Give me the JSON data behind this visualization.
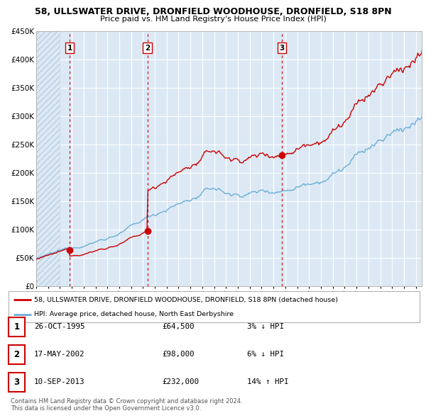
{
  "title1": "58, ULLSWATER DRIVE, DRONFIELD WOODHOUSE, DRONFIELD, S18 8PN",
  "title2": "Price paid vs. HM Land Registry's House Price Index (HPI)",
  "ylim": [
    0,
    450000
  ],
  "xlim_start": 1993.0,
  "xlim_end": 2025.5,
  "yticks": [
    0,
    50000,
    100000,
    150000,
    200000,
    250000,
    300000,
    350000,
    400000,
    450000
  ],
  "ytick_labels": [
    "£0",
    "£50K",
    "£100K",
    "£150K",
    "£200K",
    "£250K",
    "£300K",
    "£350K",
    "£400K",
    "£450K"
  ],
  "xticks": [
    1993,
    1994,
    1995,
    1996,
    1997,
    1998,
    1999,
    2000,
    2001,
    2002,
    2003,
    2004,
    2005,
    2006,
    2007,
    2008,
    2009,
    2010,
    2011,
    2012,
    2013,
    2014,
    2015,
    2016,
    2017,
    2018,
    2019,
    2020,
    2021,
    2022,
    2023,
    2024,
    2025
  ],
  "background_color": "#ffffff",
  "plot_bg_color": "#dce9f5",
  "grid_color": "#ffffff",
  "hpi_line_color": "#6baed6",
  "price_line_color": "#cc0000",
  "vline_color": "#cc0000",
  "hatch_color": "#b0c8e0",
  "sale_points": [
    {
      "year": 1995.82,
      "price": 64500,
      "label": "1"
    },
    {
      "year": 2002.38,
      "price": 98000,
      "label": "2"
    },
    {
      "year": 2013.71,
      "price": 232000,
      "label": "3"
    }
  ],
  "sale_vlines": [
    1995.82,
    2002.38,
    2013.71
  ],
  "legend_line1": "58, ULLSWATER DRIVE, DRONFIELD WOODHOUSE, DRONFIELD, S18 8PN (detached house)",
  "legend_line2": "HPI: Average price, detached house, North East Derbyshire",
  "table_rows": [
    {
      "num": "1",
      "date": "26-OCT-1995",
      "price": "£64,500",
      "hpi": "3% ↓ HPI"
    },
    {
      "num": "2",
      "date": "17-MAY-2002",
      "price": "£98,000",
      "hpi": "6% ↓ HPI"
    },
    {
      "num": "3",
      "date": "10-SEP-2013",
      "price": "£232,000",
      "hpi": "14% ↑ HPI"
    }
  ],
  "footnote": "Contains HM Land Registry data © Crown copyright and database right 2024.\nThis data is licensed under the Open Government Licence v3.0."
}
